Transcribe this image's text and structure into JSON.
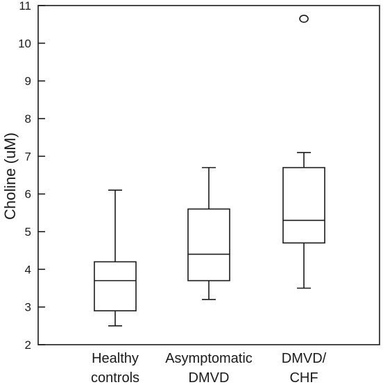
{
  "chart_data": {
    "type": "box",
    "title": "",
    "xlabel": "",
    "ylabel": "Choline (uM)",
    "ylim": [
      2,
      11
    ],
    "yticks": [
      2,
      3,
      4,
      5,
      6,
      7,
      8,
      9,
      10,
      11
    ],
    "grid": false,
    "categories": [
      {
        "label_lines": [
          "Healthy",
          "controls"
        ],
        "whisker_low": 2.5,
        "q1": 2.9,
        "median": 3.7,
        "q3": 4.2,
        "whisker_high": 6.1,
        "outliers": []
      },
      {
        "label_lines": [
          "Asymptomatic",
          "DMVD"
        ],
        "whisker_low": 3.2,
        "q1": 3.7,
        "median": 4.4,
        "q3": 5.6,
        "whisker_high": 6.7,
        "outliers": []
      },
      {
        "label_lines": [
          "DMVD/",
          "CHF"
        ],
        "whisker_low": 3.5,
        "q1": 4.7,
        "median": 5.3,
        "q3": 6.7,
        "whisker_high": 7.1,
        "outliers": [
          10.65
        ]
      }
    ]
  }
}
